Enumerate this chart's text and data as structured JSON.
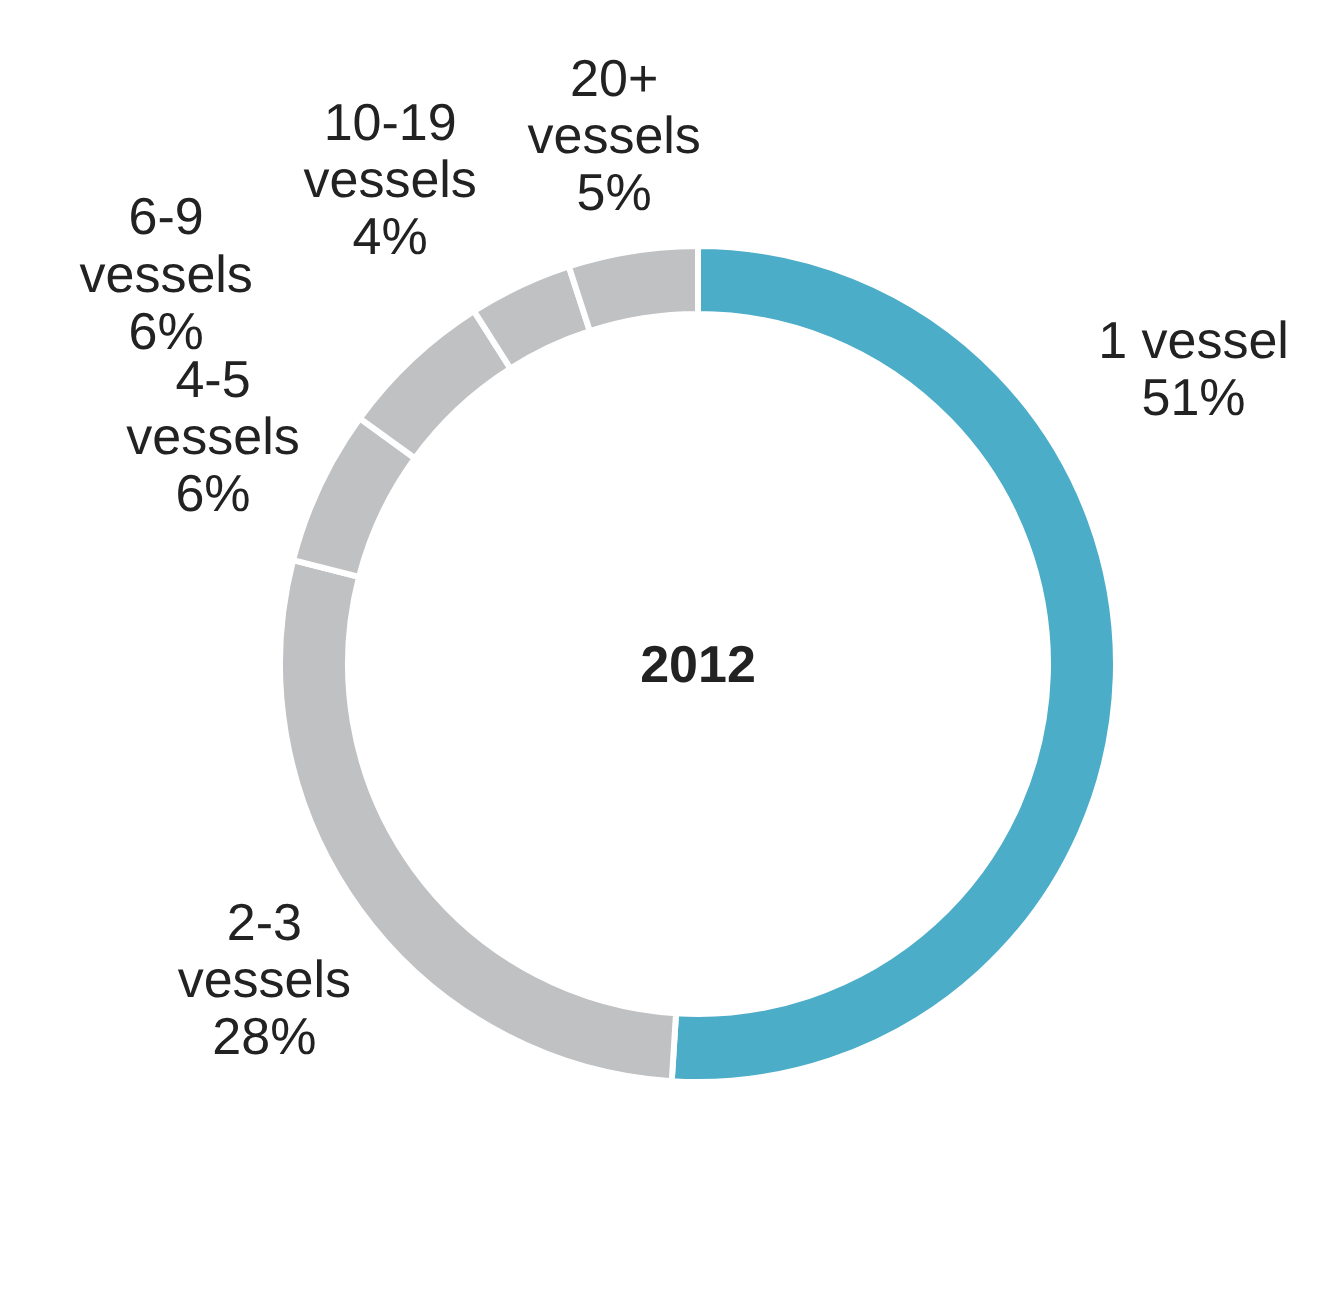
{
  "chart_data": {
    "type": "donut",
    "title": "2012",
    "categories": [
      "1 vessel",
      "2-3 vessels",
      "4-5 vessels",
      "6-9 vessels",
      "10-19 vessels",
      "20+ vessels"
    ],
    "values": [
      51,
      28,
      6,
      6,
      4,
      5
    ],
    "colors": [
      "#4badc8",
      "#c0c1c3",
      "#c0c1c3",
      "#c0c1c3",
      "#c0c1c3",
      "#c0c1c3"
    ],
    "value_labels": [
      "51%",
      "28%",
      "6%",
      "6%",
      "4%",
      "5%"
    ]
  }
}
